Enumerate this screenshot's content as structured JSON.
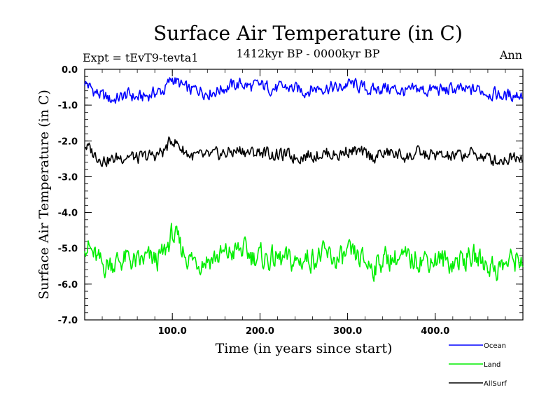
{
  "chart_data": {
    "type": "line",
    "title": "Surface Air Temperature (in C)",
    "subtitle": "1412kyr BP - 0000kyr BP",
    "left_label": "Expt = tEvT9-tevta1",
    "right_label": "Ann",
    "xlabel": "Time (in years since start)",
    "ylabel": "Surface Air Temperature (in C)",
    "xlim": [
      0,
      500
    ],
    "ylim": [
      -7.0,
      0.0
    ],
    "x_ticks": [
      100,
      200,
      300,
      400
    ],
    "x_tick_labels": [
      "100.0",
      "200.0",
      "300.0",
      "400.0"
    ],
    "y_ticks": [
      0,
      -1,
      -2,
      -3,
      -4,
      -5,
      -6,
      -7
    ],
    "y_tick_labels": [
      "0.0",
      "-1.0",
      "-2.0",
      "-3.0",
      "-4.0",
      "-5.0",
      "-6.0",
      "-7.0"
    ],
    "legend_position": "bottom-right, below plot",
    "series": [
      {
        "name": "Ocean",
        "color": "#0000ff",
        "x_start": 0,
        "x_step": 10,
        "values": [
          -0.35,
          -0.6,
          -0.75,
          -0.85,
          -0.8,
          -0.7,
          -0.8,
          -0.75,
          -0.65,
          -0.6,
          -0.25,
          -0.45,
          -0.6,
          -0.55,
          -0.65,
          -0.6,
          -0.5,
          -0.45,
          -0.4,
          -0.5,
          -0.45,
          -0.5,
          -0.55,
          -0.5,
          -0.55,
          -0.6,
          -0.55,
          -0.5,
          -0.5,
          -0.55,
          -0.4,
          -0.45,
          -0.55,
          -0.6,
          -0.5,
          -0.55,
          -0.6,
          -0.65,
          -0.55,
          -0.6,
          -0.55,
          -0.6,
          -0.55,
          -0.6,
          -0.6,
          -0.55,
          -0.65,
          -0.7,
          -0.75,
          -0.7
        ]
      },
      {
        "name": "Land",
        "color": "#00ee00",
        "x_start": 0,
        "x_step": 10,
        "values": [
          -4.8,
          -5.2,
          -5.5,
          -5.4,
          -5.35,
          -5.3,
          -5.45,
          -5.3,
          -5.35,
          -5.2,
          -4.6,
          -5.0,
          -5.3,
          -5.35,
          -5.3,
          -5.25,
          -5.2,
          -5.1,
          -5.05,
          -5.2,
          -5.25,
          -5.3,
          -5.3,
          -5.35,
          -5.4,
          -5.3,
          -5.25,
          -5.2,
          -5.25,
          -5.35,
          -5.2,
          -5.25,
          -5.4,
          -5.5,
          -5.3,
          -5.25,
          -5.3,
          -5.35,
          -5.25,
          -5.3,
          -5.3,
          -5.35,
          -5.4,
          -5.3,
          -5.25,
          -5.3,
          -5.45,
          -5.55,
          -5.45,
          -5.3
        ]
      },
      {
        "name": "AllSurf",
        "color": "#000000",
        "x_start": 0,
        "x_step": 10,
        "values": [
          -2.1,
          -2.35,
          -2.5,
          -2.55,
          -2.45,
          -2.4,
          -2.5,
          -2.45,
          -2.4,
          -2.3,
          -1.95,
          -2.2,
          -2.4,
          -2.45,
          -2.45,
          -2.4,
          -2.35,
          -2.3,
          -2.25,
          -2.35,
          -2.3,
          -2.35,
          -2.4,
          -2.4,
          -2.45,
          -2.4,
          -2.4,
          -2.35,
          -2.35,
          -2.4,
          -2.25,
          -2.3,
          -2.4,
          -2.45,
          -2.35,
          -2.35,
          -2.4,
          -2.45,
          -2.35,
          -2.4,
          -2.4,
          -2.45,
          -2.45,
          -2.4,
          -2.35,
          -2.4,
          -2.5,
          -2.55,
          -2.5,
          -2.4
        ]
      }
    ]
  }
}
